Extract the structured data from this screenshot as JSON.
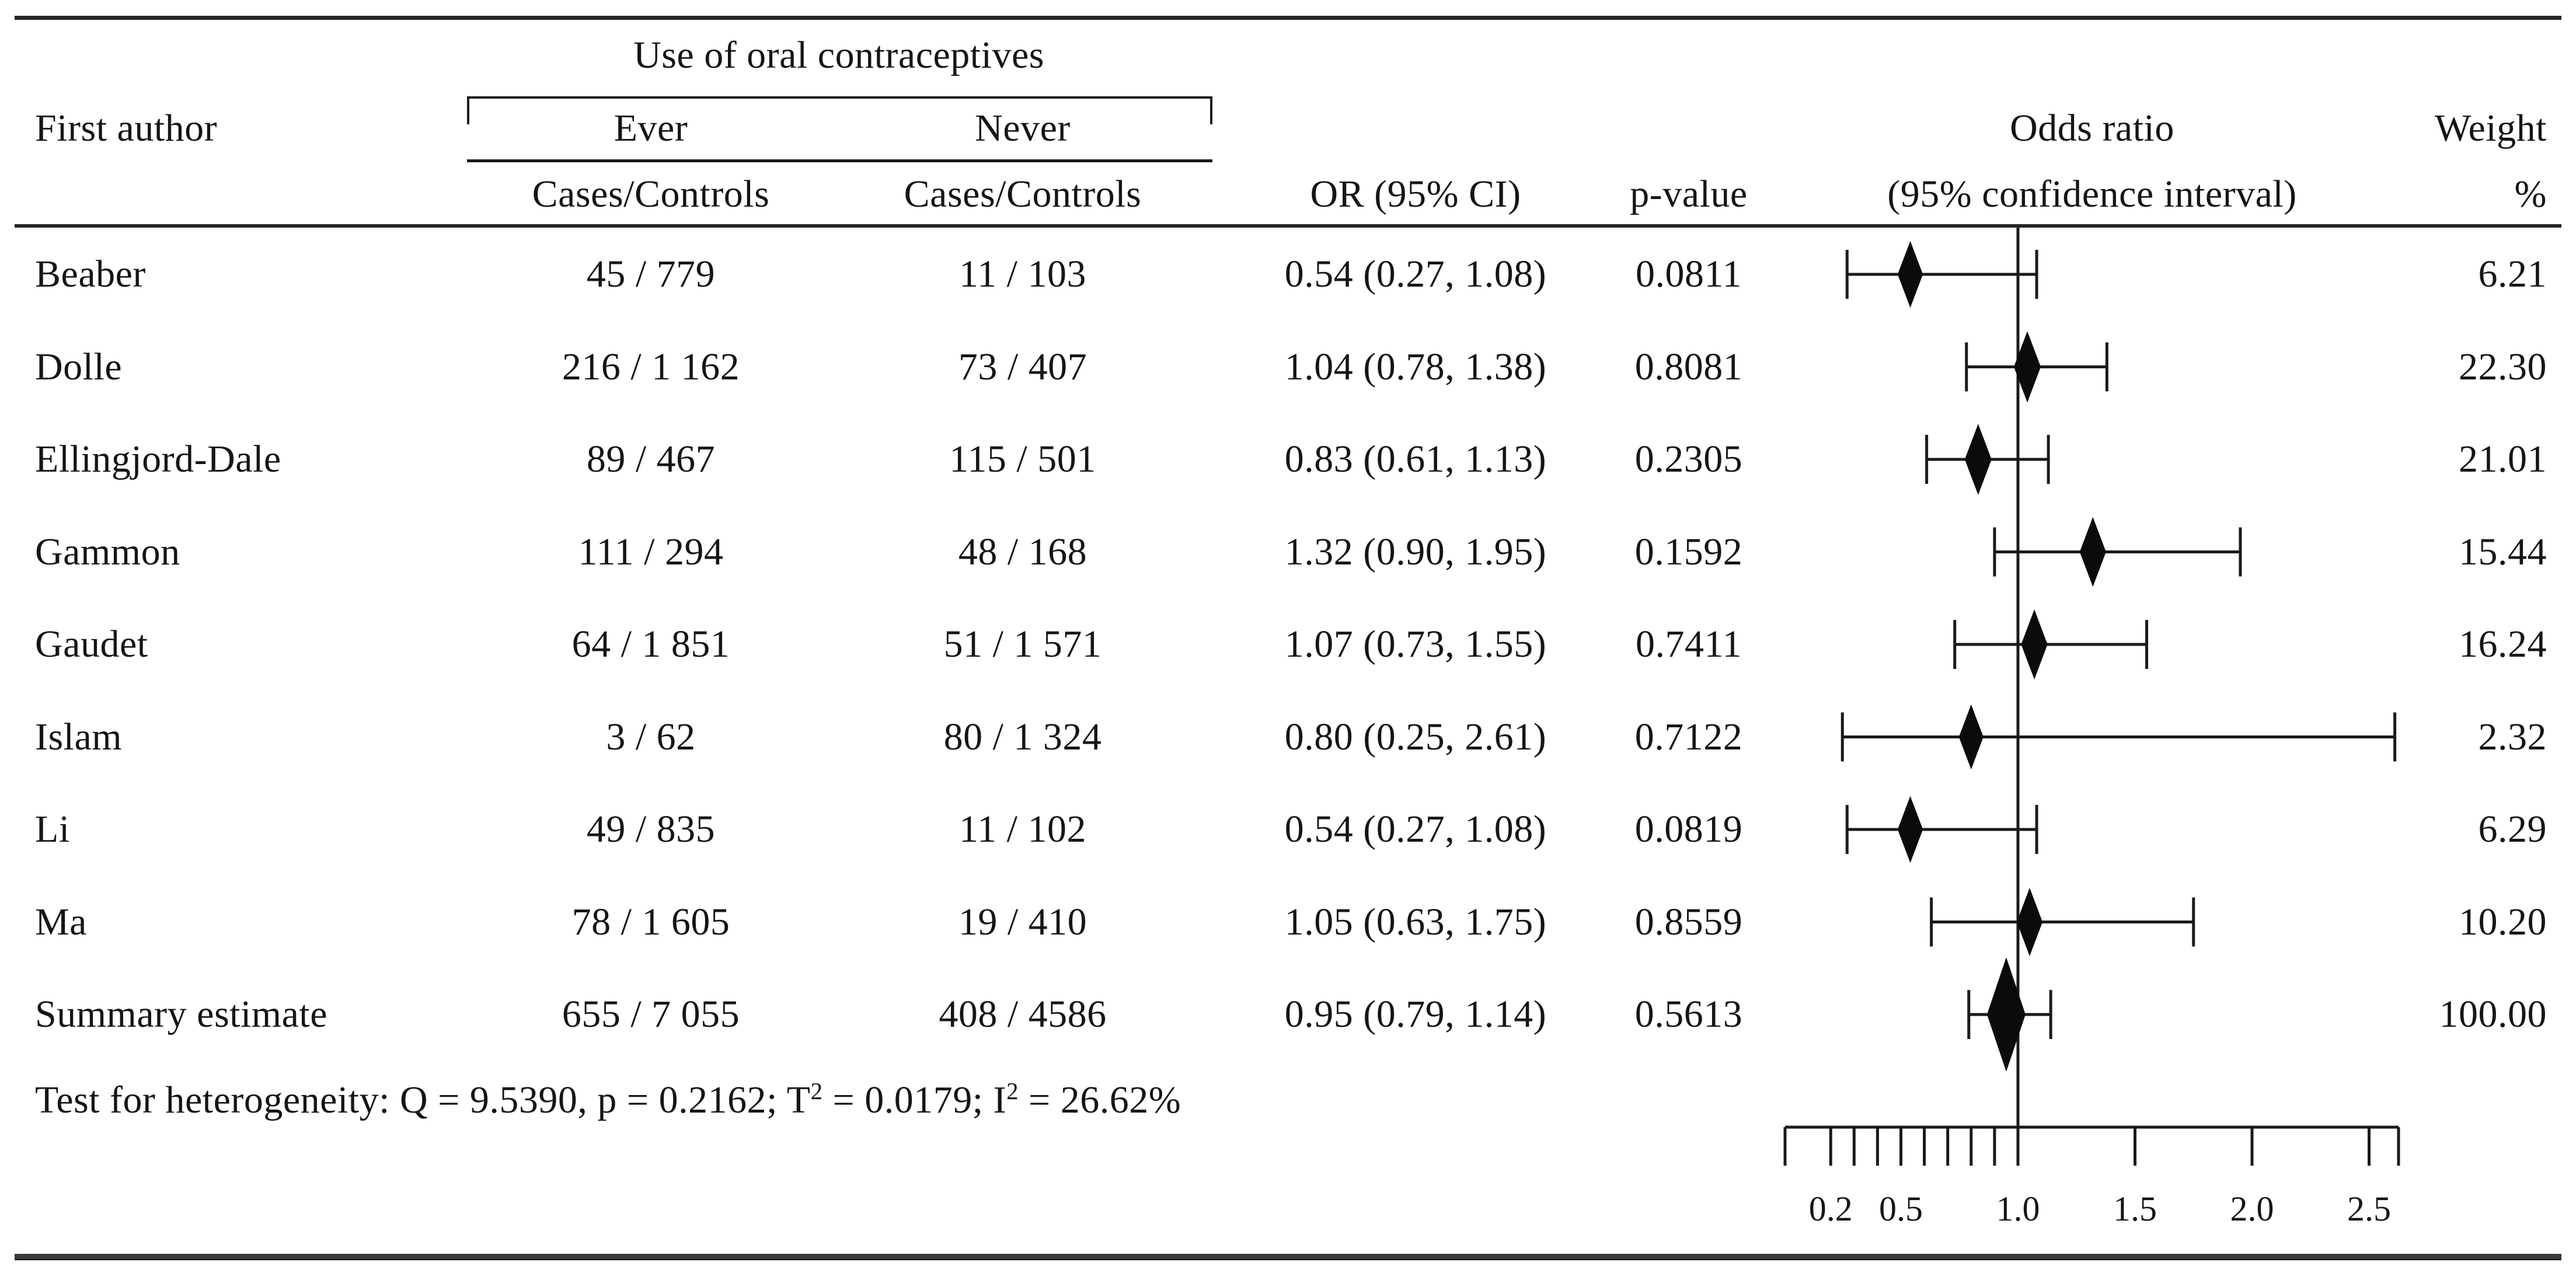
{
  "header": {
    "group_title": "Use of oral contraceptives",
    "first_author": "First author",
    "ever": "Ever",
    "never": "Never",
    "cases_controls_ever": "Cases/Controls",
    "cases_controls_never": "Cases/Controls",
    "or_ci": "OR (95% CI)",
    "p_value": "p-value",
    "odds_ratio_line1": "Odds ratio",
    "odds_ratio_line2": "(95% confidence interval)",
    "weight": "Weight",
    "percent": "%"
  },
  "heterogeneity": {
    "part1": "Test for heterogeneity: Q = 9.5390, p = 0.2162; T",
    "sup1": "2",
    "part2": " = 0.0179; I",
    "sup2": "2",
    "part3": " = 26.62%"
  },
  "colors": {
    "text": "#151515",
    "line": "#1a1a1a",
    "diamond_fill": "#0b0b0b",
    "bottom_rule": "#3a3a3a"
  },
  "chart_data": {
    "type": "forest",
    "title": "Use of oral contraceptives meta-analysis forest plot",
    "xlabel": "Odds ratio (95% confidence interval)",
    "axis": {
      "scale": "linear",
      "reference_line": 1.0,
      "range": [
        0.0,
        2.63
      ],
      "labeled_ticks": [
        0.2,
        0.5,
        1.0,
        1.5,
        2.0,
        2.5
      ],
      "tick_labels": [
        "0.2",
        "0.5",
        "1.0",
        "1.5",
        "2.0",
        "2.5"
      ],
      "minor_ticks": [
        0.3,
        0.4,
        0.6,
        0.7,
        0.8,
        0.9
      ]
    },
    "studies": [
      {
        "author": "Beaber",
        "ever": "45 / 779",
        "never": "11 / 103",
        "or_ci": "0.54 (0.27, 1.08)",
        "p_value": "0.0811",
        "or": 0.54,
        "ci_low": 0.27,
        "ci_high": 1.08,
        "weight": "6.21",
        "weight_value": 6.21,
        "summary": false
      },
      {
        "author": "Dolle",
        "ever": "216 / 1 162",
        "never": "73 / 407",
        "or_ci": "1.04 (0.78, 1.38)",
        "p_value": "0.8081",
        "or": 1.04,
        "ci_low": 0.78,
        "ci_high": 1.38,
        "weight": "22.30",
        "weight_value": 22.3,
        "summary": false
      },
      {
        "author": "Ellingjord-Dale",
        "ever": "89 / 467",
        "never": "115 / 501",
        "or_ci": "0.83 (0.61, 1.13)",
        "p_value": "0.2305",
        "or": 0.83,
        "ci_low": 0.61,
        "ci_high": 1.13,
        "weight": "21.01",
        "weight_value": 21.01,
        "summary": false
      },
      {
        "author": "Gammon",
        "ever": "111 / 294",
        "never": "48 / 168",
        "or_ci": "1.32 (0.90, 1.95)",
        "p_value": "0.1592",
        "or": 1.32,
        "ci_low": 0.9,
        "ci_high": 1.95,
        "weight": "15.44",
        "weight_value": 15.44,
        "summary": false
      },
      {
        "author": "Gaudet",
        "ever": "64 / 1 851",
        "never": "51 / 1 571",
        "or_ci": "1.07 (0.73, 1.55)",
        "p_value": "0.7411",
        "or": 1.07,
        "ci_low": 0.73,
        "ci_high": 1.55,
        "weight": "16.24",
        "weight_value": 16.24,
        "summary": false
      },
      {
        "author": "Islam",
        "ever": "3 / 62",
        "never": "80 / 1 324",
        "or_ci": "0.80 (0.25, 2.61)",
        "p_value": "0.7122",
        "or": 0.8,
        "ci_low": 0.25,
        "ci_high": 2.61,
        "weight": "2.32",
        "weight_value": 2.32,
        "summary": false
      },
      {
        "author": "Li",
        "ever": "49 / 835",
        "never": "11 / 102",
        "or_ci": "0.54 (0.27, 1.08)",
        "p_value": "0.0819",
        "or": 0.54,
        "ci_low": 0.27,
        "ci_high": 1.08,
        "weight": "6.29",
        "weight_value": 6.29,
        "summary": false
      },
      {
        "author": "Ma",
        "ever": "78 / 1 605",
        "never": "19 / 410",
        "or_ci": "1.05 (0.63, 1.75)",
        "p_value": "0.8559",
        "or": 1.05,
        "ci_low": 0.63,
        "ci_high": 1.75,
        "weight": "10.20",
        "weight_value": 10.2,
        "summary": false
      },
      {
        "author": "Summary estimate",
        "ever": "655 / 7 055",
        "never": "408 / 4586",
        "or_ci": "0.95 (0.79, 1.14)",
        "p_value": "0.5613",
        "or": 0.95,
        "ci_low": 0.79,
        "ci_high": 1.14,
        "weight": "100.00",
        "weight_value": 100.0,
        "summary": true
      }
    ]
  }
}
